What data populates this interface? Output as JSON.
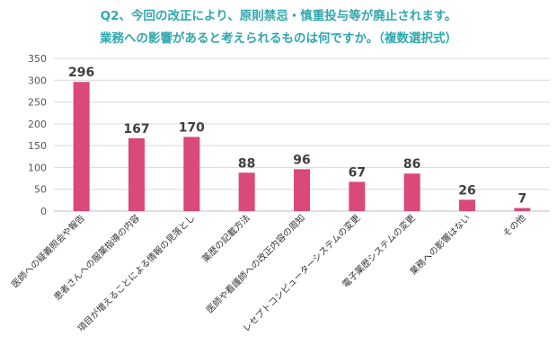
{
  "header": {
    "line1": "Q2、今回の改正により、原則禁忌・慎重投与等が廃止されます。",
    "line2": "業務への影響があると考えられるものは何ですか。（複数選択式）"
  },
  "colors": {
    "title": "#2fa8ae",
    "bar": "#d9497a",
    "gridline": "#d9d9d9",
    "axis": "#bfbfbf"
  },
  "chart_data": {
    "type": "bar",
    "categories": [
      "医師への疑義照会や報告",
      "患者さんへの服薬指導の内容",
      "項目が増えることによる情報の見落とし",
      "薬歴の記載方法",
      "医師や看護師への改正内容の周知",
      "レセプトコンピューターシステムの変更",
      "電子薬歴システムの変更",
      "業務への影響はない",
      "その他"
    ],
    "values": [
      296,
      167,
      170,
      88,
      96,
      67,
      86,
      26,
      7
    ],
    "ylim": [
      0,
      350
    ],
    "yticks": [
      0,
      50,
      100,
      150,
      200,
      250,
      300,
      350
    ],
    "grid": true
  }
}
